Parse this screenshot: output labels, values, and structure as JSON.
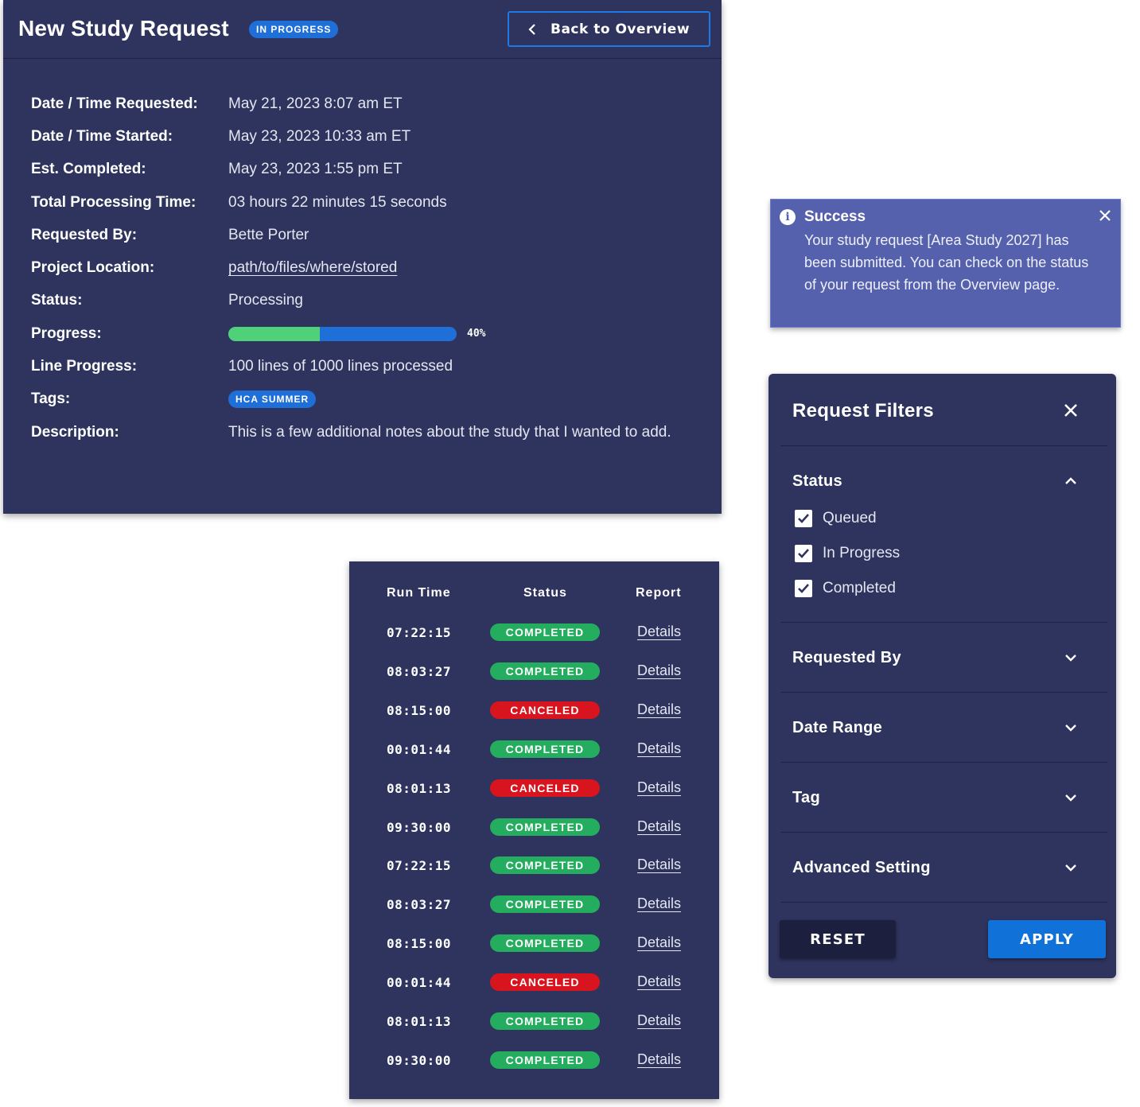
{
  "detail": {
    "title": "New Study Request",
    "status_badge": "IN PROGRESS",
    "back_label": "Back to Overview",
    "fields": {
      "date_requested": {
        "label": "Date / Time Requested:",
        "value": "May 21, 2023 8:07 am ET"
      },
      "date_started": {
        "label": "Date / Time Started:",
        "value": "May 23, 2023 10:33 am ET"
      },
      "est_completed": {
        "label": "Est. Completed:",
        "value": "May 23, 2023 1:55 pm ET"
      },
      "processing_time": {
        "label": "Total Processing Time:",
        "value": "03 hours 22 minutes 15 seconds"
      },
      "requested_by": {
        "label": "Requested By:",
        "value": "Bette Porter"
      },
      "project_location": {
        "label": "Project Location:",
        "value": "path/to/files/where/stored"
      },
      "status": {
        "label": "Status:",
        "value": "Processing"
      },
      "progress": {
        "label": "Progress:",
        "percent": 40,
        "percent_label": "40%"
      },
      "line_progress": {
        "label": "Line Progress:",
        "value": "100 lines of 1000 lines processed"
      },
      "tags": {
        "label": "Tags:",
        "value": "HCA SUMMER"
      },
      "description": {
        "label": "Description:",
        "value": "This is a few additional notes about the study that I wanted to add."
      }
    }
  },
  "toast": {
    "title": "Success",
    "message": "Your study request [Area Study 2027] has been submitted. You can check on the status of your request from the Overview page."
  },
  "runs": {
    "headers": {
      "run_time": "Run Time",
      "status": "Status",
      "report": "Report"
    },
    "rows": [
      {
        "time": "07:22:15",
        "status": "COMPLETED",
        "report": "Details"
      },
      {
        "time": "08:03:27",
        "status": "COMPLETED",
        "report": "Details"
      },
      {
        "time": "08:15:00",
        "status": "CANCELED",
        "report": "Details"
      },
      {
        "time": "00:01:44",
        "status": "COMPLETED",
        "report": "Details"
      },
      {
        "time": "08:01:13",
        "status": "CANCELED",
        "report": "Details"
      },
      {
        "time": "09:30:00",
        "status": "COMPLETED",
        "report": "Details"
      },
      {
        "time": "07:22:15",
        "status": "COMPLETED",
        "report": "Details"
      },
      {
        "time": "08:03:27",
        "status": "COMPLETED",
        "report": "Details"
      },
      {
        "time": "08:15:00",
        "status": "COMPLETED",
        "report": "Details"
      },
      {
        "time": "00:01:44",
        "status": "CANCELED",
        "report": "Details"
      },
      {
        "time": "08:01:13",
        "status": "COMPLETED",
        "report": "Details"
      },
      {
        "time": "09:30:00",
        "status": "COMPLETED",
        "report": "Details"
      }
    ]
  },
  "filters": {
    "title": "Request Filters",
    "status_section": {
      "label": "Status",
      "expanded": true,
      "options": [
        {
          "label": "Queued",
          "checked": true
        },
        {
          "label": "In Progress",
          "checked": true
        },
        {
          "label": "Completed",
          "checked": true
        }
      ]
    },
    "sections": [
      {
        "label": "Requested By",
        "expanded": false
      },
      {
        "label": "Date Range",
        "expanded": false
      },
      {
        "label": "Tag",
        "expanded": false
      },
      {
        "label": "Advanced Setting",
        "expanded": false
      }
    ],
    "reset_label": "RESET",
    "apply_label": "APPLY"
  },
  "colors": {
    "panel_bg": "#2f345e",
    "accent_blue": "#1f6fd9",
    "progress_green": "#4fd17a",
    "completed_green": "#24ad5e",
    "canceled_red": "#d8141f",
    "toast_bg": "#5561ad"
  }
}
